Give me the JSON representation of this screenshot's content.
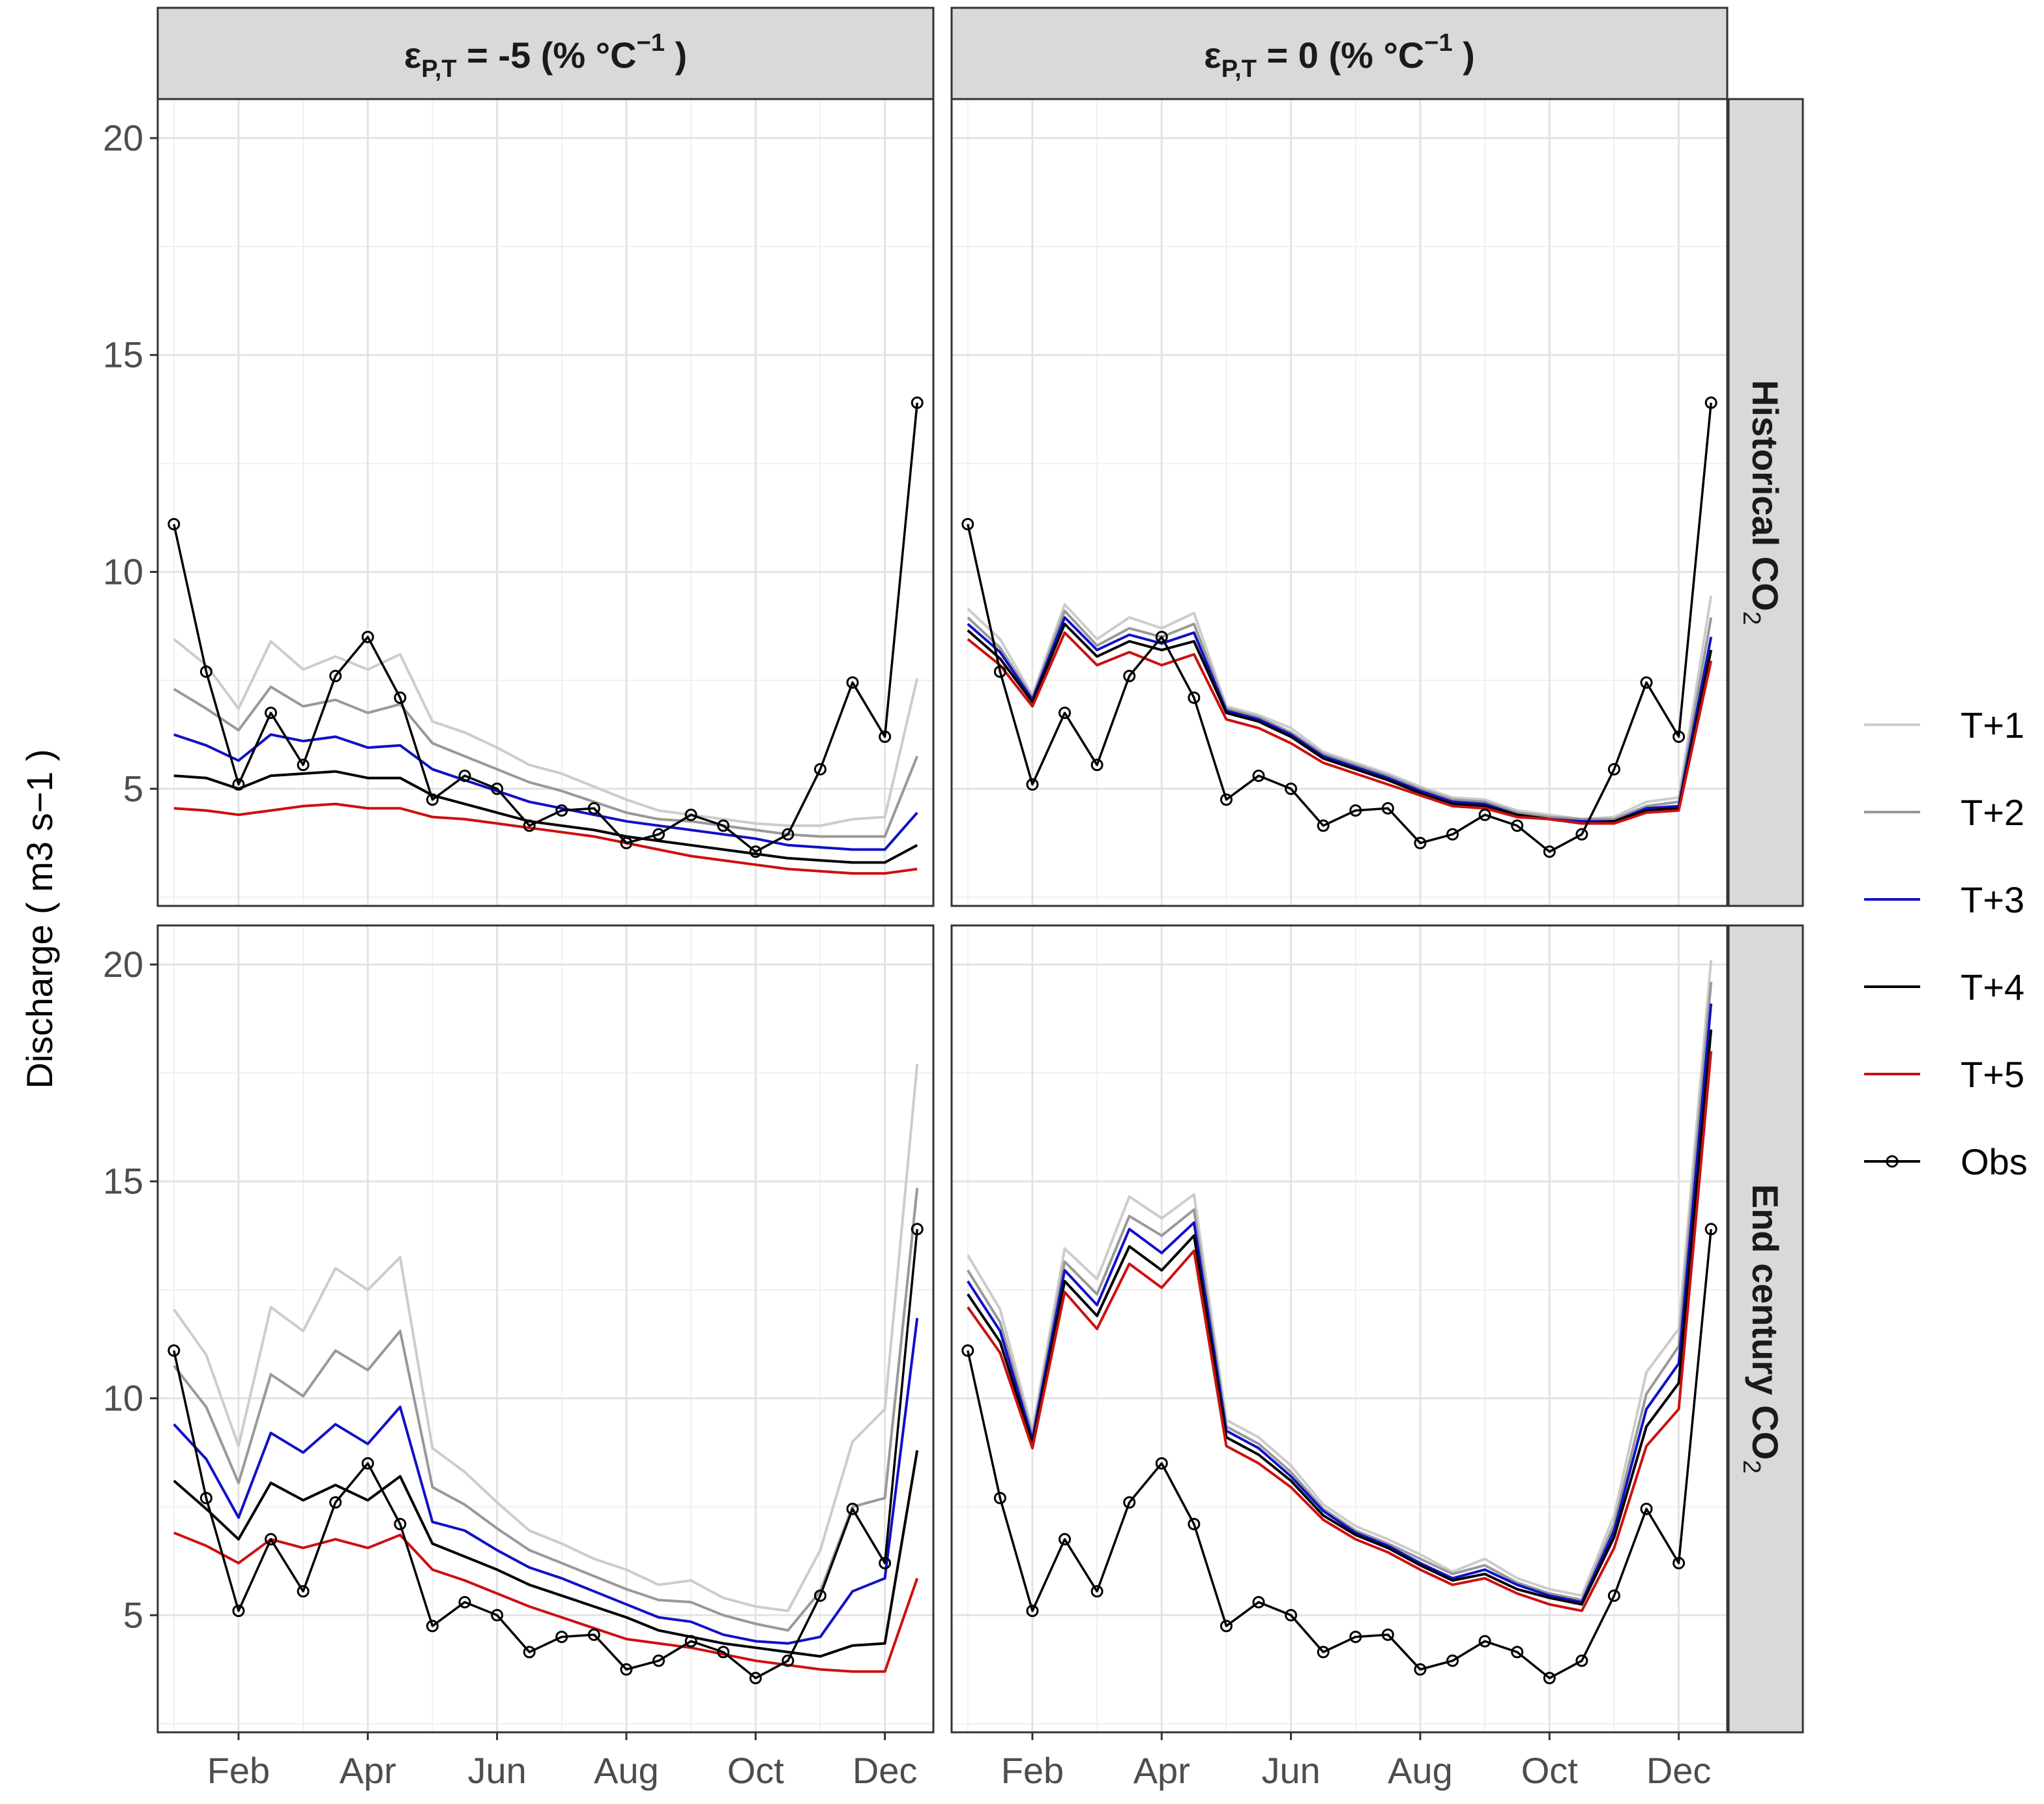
{
  "chart_data": {
    "type": "line",
    "ylabel": "Discharge",
    "ylabel_unit": "( m3 s−1 )",
    "ylim": [
      2.3,
      20.9
    ],
    "y_ticks": [
      "5",
      "10",
      "15",
      "20"
    ],
    "x_ticks": [
      "Feb",
      "Apr",
      "Jun",
      "Aug",
      "Oct",
      "Dec"
    ],
    "x_positions": [
      1,
      1.5,
      2,
      2.5,
      3,
      3.5,
      4,
      4.5,
      5,
      5.5,
      6,
      6.5,
      7,
      7.5,
      8,
      8.5,
      9,
      9.5,
      10,
      10.5,
      11,
      11.5,
      12,
      12.5
    ],
    "column_labels": [
      {
        "prefix": "ε",
        "sub": "P,T",
        "mid": " = -5 (% °C",
        "sup": "−1",
        "end": " )"
      },
      {
        "prefix": "ε",
        "sub": "P,T",
        "mid": " = 0 (% °C",
        "sup": "−1",
        "end": " )"
      }
    ],
    "row_labels": [
      {
        "main": "Historical CO",
        "sub": "2"
      },
      {
        "main": "End century CO",
        "sub": "2"
      }
    ],
    "legend": [
      {
        "label": "T+1",
        "color": "#cccccc",
        "marker": false
      },
      {
        "label": "T+2",
        "color": "#999999",
        "marker": false
      },
      {
        "label": "T+3",
        "color": "#1010c8",
        "marker": false
      },
      {
        "label": "T+4",
        "color": "#000000",
        "marker": false
      },
      {
        "label": "T+5",
        "color": "#cc1010",
        "marker": false
      },
      {
        "label": "Obs",
        "color": "#000000",
        "marker": true
      }
    ],
    "observed": [
      11.1,
      7.7,
      5.1,
      6.75,
      5.55,
      7.6,
      8.5,
      7.1,
      4.75,
      5.3,
      5.0,
      4.15,
      4.5,
      4.55,
      3.75,
      3.95,
      4.4,
      4.15,
      3.55,
      3.95,
      5.45,
      7.45,
      6.2,
      13.9
    ],
    "panels": [
      {
        "column": 0,
        "row": 0,
        "series": [
          {
            "name": "T+1",
            "values": [
              8.45,
              7.85,
              6.85,
              8.4,
              7.75,
              8.05,
              7.75,
              8.1,
              6.55,
              6.3,
              5.95,
              5.55,
              5.35,
              5.05,
              4.75,
              4.5,
              4.4,
              4.3,
              4.2,
              4.15,
              4.15,
              4.3,
              4.35,
              7.55
            ]
          },
          {
            "name": "T+2",
            "values": [
              7.3,
              6.85,
              6.35,
              7.35,
              6.9,
              7.05,
              6.75,
              6.95,
              6.05,
              5.75,
              5.45,
              5.15,
              4.95,
              4.7,
              4.45,
              4.3,
              4.25,
              4.15,
              4.05,
              3.95,
              3.9,
              3.9,
              3.9,
              5.75
            ]
          },
          {
            "name": "T+3",
            "values": [
              6.25,
              6.0,
              5.65,
              6.25,
              6.1,
              6.2,
              5.95,
              6.0,
              5.45,
              5.2,
              4.95,
              4.7,
              4.55,
              4.4,
              4.25,
              4.15,
              4.05,
              3.95,
              3.85,
              3.7,
              3.65,
              3.6,
              3.6,
              4.45
            ]
          },
          {
            "name": "T+4",
            "values": [
              5.3,
              5.25,
              5.0,
              5.3,
              5.35,
              5.4,
              5.25,
              5.25,
              4.85,
              4.65,
              4.45,
              4.25,
              4.15,
              4.05,
              3.9,
              3.8,
              3.7,
              3.6,
              3.5,
              3.4,
              3.35,
              3.3,
              3.3,
              3.7
            ]
          },
          {
            "name": "T+5",
            "values": [
              4.55,
              4.5,
              4.4,
              4.5,
              4.6,
              4.65,
              4.55,
              4.55,
              4.35,
              4.3,
              4.2,
              4.1,
              4.0,
              3.9,
              3.75,
              3.6,
              3.45,
              3.35,
              3.25,
              3.15,
              3.1,
              3.05,
              3.05,
              3.15
            ]
          }
        ]
      },
      {
        "column": 1,
        "row": 0,
        "series": [
          {
            "name": "T+1",
            "values": [
              9.15,
              8.45,
              7.15,
              9.25,
              8.45,
              8.95,
              8.7,
              9.05,
              6.9,
              6.7,
              6.4,
              5.85,
              5.6,
              5.35,
              5.05,
              4.8,
              4.75,
              4.5,
              4.4,
              4.3,
              4.35,
              4.7,
              4.8,
              9.45
            ]
          },
          {
            "name": "T+2",
            "values": [
              8.95,
              8.25,
              7.1,
              9.1,
              8.3,
              8.7,
              8.5,
              8.8,
              6.85,
              6.65,
              6.3,
              5.8,
              5.55,
              5.3,
              5.0,
              4.75,
              4.7,
              4.45,
              4.35,
              4.3,
              4.3,
              4.6,
              4.7,
              8.95
            ]
          },
          {
            "name": "T+3",
            "values": [
              8.8,
              8.15,
              7.05,
              8.95,
              8.2,
              8.55,
              8.35,
              8.6,
              6.8,
              6.6,
              6.25,
              5.75,
              5.5,
              5.25,
              4.95,
              4.7,
              4.65,
              4.4,
              4.3,
              4.25,
              4.25,
              4.55,
              4.6,
              8.5
            ]
          },
          {
            "name": "T+4",
            "values": [
              8.65,
              8.0,
              7.0,
              8.8,
              8.05,
              8.4,
              8.2,
              8.4,
              6.75,
              6.55,
              6.2,
              5.7,
              5.45,
              5.2,
              4.9,
              4.65,
              4.6,
              4.4,
              4.3,
              4.2,
              4.25,
              4.5,
              4.55,
              8.2
            ]
          },
          {
            "name": "T+5",
            "values": [
              8.45,
              7.85,
              6.9,
              8.6,
              7.85,
              8.15,
              7.85,
              8.1,
              6.6,
              6.4,
              6.05,
              5.6,
              5.35,
              5.1,
              4.85,
              4.6,
              4.55,
              4.35,
              4.3,
              4.2,
              4.2,
              4.45,
              4.5,
              7.95
            ]
          }
        ]
      },
      {
        "column": 0,
        "row": 1,
        "series": [
          {
            "name": "T+1",
            "values": [
              12.05,
              11.0,
              8.9,
              12.1,
              11.55,
              13.0,
              12.5,
              13.25,
              8.85,
              8.3,
              7.6,
              6.95,
              6.65,
              6.3,
              6.05,
              5.7,
              5.8,
              5.4,
              5.2,
              5.1,
              6.5,
              9.0,
              9.75,
              17.7
            ]
          },
          {
            "name": "T+2",
            "values": [
              10.75,
              9.8,
              8.05,
              10.55,
              10.05,
              11.1,
              10.65,
              11.55,
              7.95,
              7.55,
              7.0,
              6.5,
              6.2,
              5.9,
              5.6,
              5.35,
              5.3,
              5.0,
              4.8,
              4.65,
              5.55,
              7.5,
              7.7,
              14.85
            ]
          },
          {
            "name": "T+3",
            "values": [
              9.4,
              8.6,
              7.25,
              9.2,
              8.75,
              9.4,
              8.95,
              9.8,
              7.15,
              6.95,
              6.5,
              6.1,
              5.85,
              5.55,
              5.25,
              4.95,
              4.85,
              4.55,
              4.4,
              4.35,
              4.5,
              5.55,
              5.85,
              11.85
            ]
          },
          {
            "name": "T+4",
            "values": [
              8.1,
              7.45,
              6.75,
              8.05,
              7.65,
              8.0,
              7.65,
              8.2,
              6.65,
              6.35,
              6.05,
              5.7,
              5.45,
              5.2,
              4.95,
              4.65,
              4.5,
              4.35,
              4.25,
              4.15,
              4.05,
              4.3,
              4.35,
              8.8
            ]
          },
          {
            "name": "T+5",
            "values": [
              6.9,
              6.6,
              6.2,
              6.75,
              6.55,
              6.75,
              6.55,
              6.85,
              6.05,
              5.8,
              5.5,
              5.2,
              4.95,
              4.7,
              4.45,
              4.35,
              4.25,
              4.1,
              3.95,
              3.85,
              3.75,
              3.7,
              3.7,
              5.85
            ]
          }
        ]
      },
      {
        "column": 1,
        "row": 1,
        "series": [
          {
            "name": "T+1",
            "values": [
              13.3,
              12.05,
              9.25,
              13.45,
              12.75,
              14.65,
              14.15,
              14.7,
              9.5,
              9.1,
              8.45,
              7.55,
              7.05,
              6.75,
              6.4,
              6.0,
              6.3,
              5.85,
              5.6,
              5.45,
              7.3,
              10.6,
              11.6,
              20.1
            ]
          },
          {
            "name": "T+2",
            "values": [
              12.95,
              11.75,
              9.15,
              13.15,
              12.4,
              14.2,
              13.75,
              14.35,
              9.35,
              8.95,
              8.3,
              7.45,
              6.95,
              6.65,
              6.3,
              5.95,
              6.15,
              5.75,
              5.5,
              5.35,
              7.1,
              10.1,
              11.2,
              19.6
            ]
          },
          {
            "name": "T+3",
            "values": [
              12.7,
              11.55,
              9.05,
              12.95,
              12.15,
              13.9,
              13.35,
              14.05,
              9.25,
              8.85,
              8.2,
              7.4,
              6.9,
              6.6,
              6.2,
              5.85,
              6.05,
              5.7,
              5.45,
              5.3,
              6.95,
              9.75,
              10.8,
              19.1
            ]
          },
          {
            "name": "T+4",
            "values": [
              12.4,
              11.3,
              8.95,
              12.7,
              11.9,
              13.5,
              12.95,
              13.75,
              9.1,
              8.7,
              8.1,
              7.3,
              6.85,
              6.55,
              6.15,
              5.8,
              5.95,
              5.6,
              5.4,
              5.25,
              6.8,
              9.35,
              10.35,
              18.5
            ]
          },
          {
            "name": "T+5",
            "values": [
              12.1,
              11.05,
              8.85,
              12.45,
              11.6,
              13.1,
              12.55,
              13.4,
              8.9,
              8.5,
              7.95,
              7.2,
              6.75,
              6.45,
              6.05,
              5.7,
              5.85,
              5.5,
              5.25,
              5.1,
              6.55,
              8.9,
              9.75,
              18.0
            ]
          }
        ]
      }
    ]
  }
}
